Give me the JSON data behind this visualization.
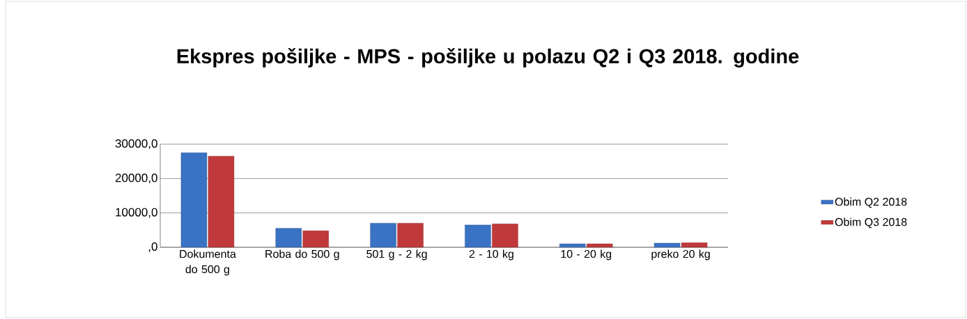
{
  "chart_data": {
    "type": "bar",
    "title": "Ekspres pošiljke - MPS - pošiljke u polazu Q2 i Q3 2018. godine",
    "categories": [
      "Dokumenta do 500 g",
      "Roba do 500 g",
      "501 g - 2 kg",
      "2 - 10 kg",
      "10 - 20 kg",
      "preko 20 kg"
    ],
    "series": [
      {
        "name": "Obim Q2  2018",
        "color": "#3a72c4",
        "values": [
          27500,
          5500,
          7000,
          6500,
          1000,
          1200
        ]
      },
      {
        "name": "Obim Q3 2018",
        "color": "#c0393b",
        "values": [
          26500,
          4800,
          7000,
          6800,
          1000,
          1300
        ]
      }
    ],
    "ylim": [
      0,
      30000
    ],
    "yticks": [
      {
        "value": 0,
        "label": ",0"
      },
      {
        "value": 10000,
        "label": "10000,0"
      },
      {
        "value": 20000,
        "label": "20000,0"
      },
      {
        "value": 30000,
        "label": "30000,0"
      }
    ],
    "grid": "y",
    "legend": "right"
  }
}
